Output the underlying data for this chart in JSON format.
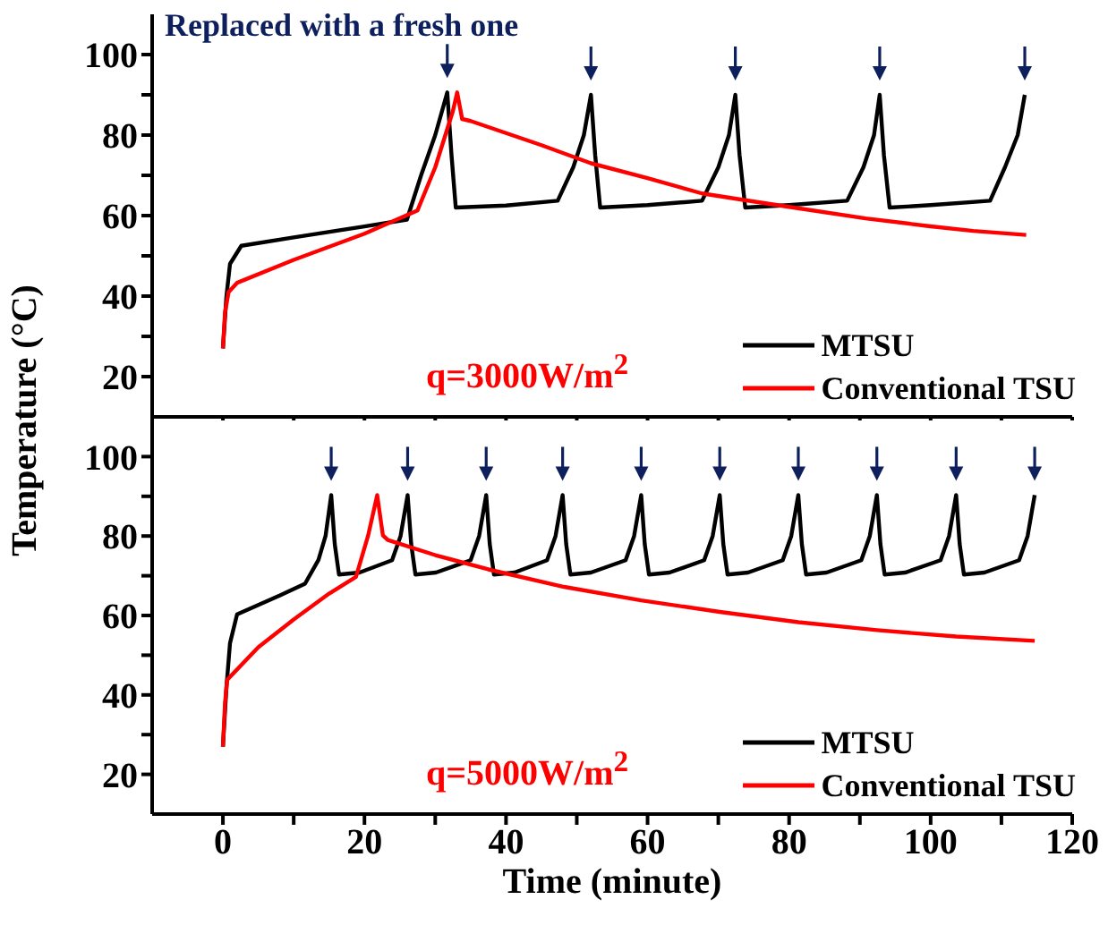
{
  "chart_data": [
    {
      "type": "line",
      "ylabel": "Temperature (°C)",
      "annotations": [
        "Replaced with a fresh one",
        "q=3000W/m$^{2}$"
      ],
      "xlim": [
        -10,
        120
      ],
      "xticks": [
        0,
        {
          "value": 10,
          "label": null
        },
        20,
        {
          "value": 30,
          "label": null
        },
        40,
        {
          "value": 50,
          "label": null
        },
        60,
        {
          "value": 70,
          "label": null
        },
        80,
        {
          "value": 90,
          "label": null
        },
        100,
        {
          "value": 110,
          "label": null
        },
        120
      ],
      "ylim": [
        10,
        110
      ],
      "yticks": [
        20,
        {
          "value": 30,
          "label": null
        },
        40,
        {
          "value": 50,
          "label": null
        },
        60,
        {
          "value": 70,
          "label": null
        },
        80,
        {
          "value": 90,
          "label": null
        },
        100
      ],
      "tick_labels": "y",
      "legend": "bottom right",
      "grid": false,
      "marker": "none",
      "line_style": "solid",
      "series": [
        {
          "name": "MTSU",
          "color": "#000000",
          "x": [
            0,
            0.5,
            1,
            2.6,
            10,
            20,
            26,
            28,
            30,
            31.7,
            32.3,
            32.9,
            40,
            47.3,
            49.5,
            51,
            52,
            52.6,
            53.3,
            60,
            67.7,
            70,
            71.5,
            72.4,
            73,
            73.8,
            80,
            88.2,
            90.5,
            92,
            92.8,
            93.4,
            94.2,
            100,
            108.4,
            110.5,
            112.3,
            113.3
          ],
          "values": [
            27,
            40,
            48,
            52.5,
            54.6,
            57.3,
            59,
            70,
            80,
            90.6,
            75,
            62,
            62.5,
            63.7,
            72,
            80,
            90,
            75,
            62,
            62.6,
            63.7,
            72,
            80,
            90,
            75,
            62,
            62.6,
            63.7,
            72,
            80,
            90,
            75,
            62,
            62.6,
            63.7,
            72,
            80,
            90
          ]
        },
        {
          "name": "Conventional TSU",
          "color": "#ff0000",
          "x": [
            0,
            0.3,
            0.8,
            2,
            10,
            20,
            27.5,
            30,
            32.5,
            33.1,
            33.8,
            35,
            37.5,
            45,
            52,
            60,
            67.7,
            75,
            80.6,
            90.8,
            99.7,
            106,
            113.5
          ],
          "values": [
            27,
            36,
            41,
            43.3,
            49,
            55.5,
            61.3,
            72,
            86,
            90.6,
            84,
            83.5,
            82,
            77.5,
            73,
            69.3,
            65.5,
            63.5,
            62,
            59.3,
            57.4,
            56.2,
            55.2
          ]
        }
      ]
    },
    {
      "type": "line",
      "xlabel": "Time (minute)",
      "annotations": [
        "q=5000W/m$^{2}$"
      ],
      "xlim": [
        -10,
        120
      ],
      "xticks": [
        0,
        {
          "value": 10,
          "label": null
        },
        20,
        {
          "value": 30,
          "label": null
        },
        40,
        {
          "value": 50,
          "label": null
        },
        60,
        {
          "value": 70,
          "label": null
        },
        80,
        {
          "value": 90,
          "label": null
        },
        100,
        {
          "value": 110,
          "label": null
        },
        120
      ],
      "ylim": [
        10,
        110
      ],
      "yticks": [
        20,
        {
          "value": 30,
          "label": null
        },
        40,
        {
          "value": 50,
          "label": null
        },
        60,
        {
          "value": 70,
          "label": null
        },
        80,
        {
          "value": 90,
          "label": null
        },
        100
      ],
      "legend": "bottom right",
      "grid": false,
      "marker": "none",
      "line_style": "solid",
      "series": [
        {
          "name": "MTSU",
          "color": "#000000",
          "x": [
            0,
            0.5,
            1,
            2,
            8,
            11.6,
            13.5,
            14.5,
            15.3,
            15.8,
            16.4,
            19.3,
            23.9,
            25.1,
            26.1,
            26.6,
            27.2,
            30.1,
            35.0,
            36.2,
            37.2,
            37.7,
            38.3,
            41.2,
            45.8,
            47.0,
            48.0,
            48.5,
            49.1,
            52.0,
            56.9,
            58.1,
            59.1,
            59.6,
            60.2,
            63.1,
            68.0,
            69.2,
            70.2,
            70.7,
            71.3,
            74.2,
            79.1,
            80.3,
            81.3,
            81.8,
            82.4,
            85.3,
            90.2,
            91.4,
            92.4,
            92.9,
            93.5,
            96.4,
            101.4,
            102.6,
            103.6,
            104.1,
            104.7,
            107.6,
            112.5,
            113.7,
            114.7
          ],
          "values": [
            27,
            42,
            53,
            60.3,
            65,
            68,
            74,
            80,
            90.3,
            78,
            70.3,
            70.8,
            73.9,
            80,
            90.3,
            78,
            70.3,
            70.8,
            73.9,
            80,
            90.3,
            78,
            70.3,
            70.8,
            73.9,
            80,
            90.3,
            78,
            70.3,
            70.8,
            73.9,
            80,
            90.3,
            78,
            70.3,
            70.8,
            73.9,
            80,
            90.3,
            78,
            70.3,
            70.8,
            73.9,
            80,
            90.3,
            78,
            70.3,
            70.8,
            73.9,
            80,
            90.3,
            78,
            70.3,
            70.8,
            73.9,
            80,
            90.3,
            78,
            70.3,
            70.8,
            73.9,
            80,
            90.3
          ]
        },
        {
          "name": "Conventional TSU",
          "color": "#ff0000",
          "x": [
            0,
            0.3,
            0.6,
            5,
            10,
            15,
            18.8,
            20.5,
            21.8,
            22.6,
            23.3,
            30,
            37.5,
            48.2,
            59.1,
            70.2,
            81.3,
            92.4,
            103.6,
            114.7
          ],
          "values": [
            27,
            38,
            43.8,
            52,
            59,
            65.5,
            69.7,
            80,
            90.3,
            80.2,
            79,
            75.2,
            71.6,
            67.2,
            63.8,
            60.9,
            58.3,
            56.3,
            54.7,
            53.6
          ]
        }
      ]
    }
  ]
}
